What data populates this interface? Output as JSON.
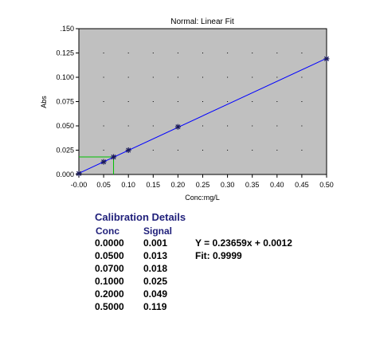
{
  "chart_data": {
    "type": "scatter",
    "title": "Normal: Linear Fit",
    "xlabel": "Conc:mg/L",
    "ylabel": "Abs",
    "xlim": [
      0,
      0.5
    ],
    "ylim": [
      0,
      0.15
    ],
    "x_ticks": [
      "-0.00",
      "0.05",
      "0.10",
      "0.15",
      "0.20",
      "0.25",
      "0.30",
      "0.35",
      "0.40",
      "0.45",
      "0.50"
    ],
    "y_ticks": [
      "0.000",
      "0.025",
      "0.050",
      "0.075",
      "0.100",
      "0.125",
      ".150"
    ],
    "grid": "dotted",
    "series": [
      {
        "type": "scatter",
        "marker": "asterisk",
        "x": [
          0.0,
          0.05,
          0.07,
          0.1,
          0.2,
          0.5
        ],
        "y": [
          0.001,
          0.013,
          0.018,
          0.025,
          0.049,
          0.119
        ]
      },
      {
        "type": "line",
        "slope": 0.23659,
        "intercept": 0.0012
      }
    ],
    "crosshair": {
      "x": 0.07,
      "y": 0.018
    },
    "colors": {
      "plot_bg": "#c0c0c0",
      "fit_line": "#0000ff",
      "markers": "#1a1a5a",
      "crosshair": "#00c000"
    }
  },
  "calibration": {
    "title": "Calibration Details",
    "headers": {
      "conc": "Conc",
      "signal": "Signal"
    },
    "rows": [
      {
        "conc": "0.0000",
        "signal": "0.001"
      },
      {
        "conc": "0.0500",
        "signal": "0.013"
      },
      {
        "conc": "0.0700",
        "signal": "0.018"
      },
      {
        "conc": "0.1000",
        "signal": "0.025"
      },
      {
        "conc": "0.2000",
        "signal": "0.049"
      },
      {
        "conc": "0.5000",
        "signal": "0.119"
      }
    ],
    "equation": "Y = 0.23659x + 0.0012",
    "fit": "Fit: 0.9999"
  }
}
